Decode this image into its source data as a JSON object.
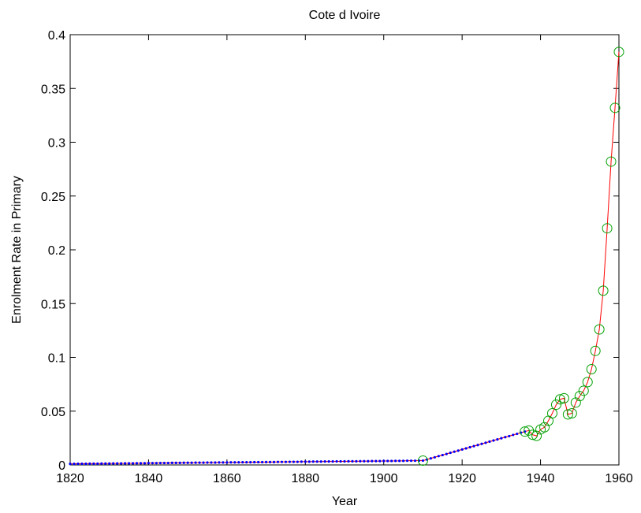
{
  "chart_data": {
    "type": "line",
    "title": "Cote d Ivoire",
    "xlabel": "Year",
    "ylabel": "Enrolment Rate in Primary",
    "xlim": [
      1820,
      1960
    ],
    "xticks": [
      1820,
      1840,
      1860,
      1880,
      1900,
      1920,
      1940,
      1960
    ],
    "ylim": [
      0,
      0.4
    ],
    "yticks": [
      0,
      0.05,
      0.1,
      0.15,
      0.2,
      0.25,
      0.3,
      0.35,
      0.4
    ],
    "grid": false,
    "series": [
      {
        "color": "#ff0000",
        "marker": "dot",
        "marker_color": "#0000ff",
        "x": [
          1820,
          1821,
          1822,
          1823,
          1824,
          1825,
          1826,
          1827,
          1828,
          1829,
          1830,
          1831,
          1832,
          1833,
          1834,
          1835,
          1836,
          1837,
          1838,
          1839,
          1840,
          1841,
          1842,
          1843,
          1844,
          1845,
          1846,
          1847,
          1848,
          1849,
          1850,
          1851,
          1852,
          1853,
          1854,
          1855,
          1856,
          1857,
          1858,
          1859,
          1860,
          1861,
          1862,
          1863,
          1864,
          1865,
          1866,
          1867,
          1868,
          1869,
          1870,
          1871,
          1872,
          1873,
          1874,
          1875,
          1876,
          1877,
          1878,
          1879,
          1880,
          1881,
          1882,
          1883,
          1884,
          1885,
          1886,
          1887,
          1888,
          1889,
          1890,
          1891,
          1892,
          1893,
          1894,
          1895,
          1896,
          1897,
          1898,
          1899,
          1900,
          1901,
          1902,
          1903,
          1904,
          1905,
          1906,
          1907,
          1908,
          1909,
          1910,
          1911,
          1912,
          1913,
          1914,
          1915,
          1916,
          1917,
          1918,
          1919,
          1920,
          1921,
          1922,
          1923,
          1924,
          1925,
          1926,
          1927,
          1928,
          1929,
          1930,
          1931,
          1932,
          1933,
          1934,
          1935,
          1936
        ],
        "values": [
          0.001,
          0.001,
          0.0011,
          0.0011,
          0.0011,
          0.0012,
          0.0012,
          0.0012,
          0.0013,
          0.0013,
          0.0013,
          0.0014,
          0.0014,
          0.0014,
          0.0015,
          0.0015,
          0.0015,
          0.0016,
          0.0016,
          0.0016,
          0.0017,
          0.0017,
          0.0017,
          0.0018,
          0.0018,
          0.0018,
          0.0019,
          0.0019,
          0.0019,
          0.002,
          0.002,
          0.002,
          0.0021,
          0.0021,
          0.0021,
          0.0022,
          0.0022,
          0.0022,
          0.0023,
          0.0023,
          0.0023,
          0.0024,
          0.0024,
          0.0024,
          0.0025,
          0.0025,
          0.0025,
          0.0026,
          0.0026,
          0.0026,
          0.0027,
          0.0027,
          0.0027,
          0.0028,
          0.0028,
          0.0028,
          0.0029,
          0.0029,
          0.0029,
          0.003,
          0.003,
          0.003,
          0.0031,
          0.0031,
          0.0031,
          0.0032,
          0.0032,
          0.0032,
          0.0033,
          0.0033,
          0.0033,
          0.0034,
          0.0034,
          0.0034,
          0.0035,
          0.0035,
          0.0035,
          0.0036,
          0.0036,
          0.0036,
          0.0037,
          0.0037,
          0.0037,
          0.0038,
          0.0038,
          0.0038,
          0.0039,
          0.0039,
          0.0039,
          0.004,
          0.004,
          0.005,
          0.0061,
          0.0071,
          0.0082,
          0.0092,
          0.0102,
          0.0113,
          0.0123,
          0.0133,
          0.0144,
          0.0154,
          0.0165,
          0.0175,
          0.0185,
          0.0196,
          0.0206,
          0.0217,
          0.0227,
          0.0237,
          0.0248,
          0.0258,
          0.0268,
          0.0279,
          0.0289,
          0.03,
          0.031
        ]
      },
      {
        "color": "#ff0000",
        "marker": "circle",
        "marker_color": "#00a000",
        "x": [
          1910,
          1936,
          1937,
          1938,
          1939,
          1940,
          1941,
          1942,
          1943,
          1944,
          1945,
          1946,
          1947,
          1948,
          1949,
          1950,
          1951,
          1952,
          1953,
          1954,
          1955,
          1956,
          1957,
          1958,
          1959,
          1960
        ],
        "values": [
          0.004,
          0.031,
          0.032,
          0.028,
          0.027,
          0.033,
          0.035,
          0.041,
          0.048,
          0.056,
          0.061,
          0.062,
          0.047,
          0.048,
          0.058,
          0.064,
          0.069,
          0.077,
          0.089,
          0.106,
          0.126,
          0.162,
          0.22,
          0.282,
          0.332,
          0.384
        ]
      }
    ]
  }
}
